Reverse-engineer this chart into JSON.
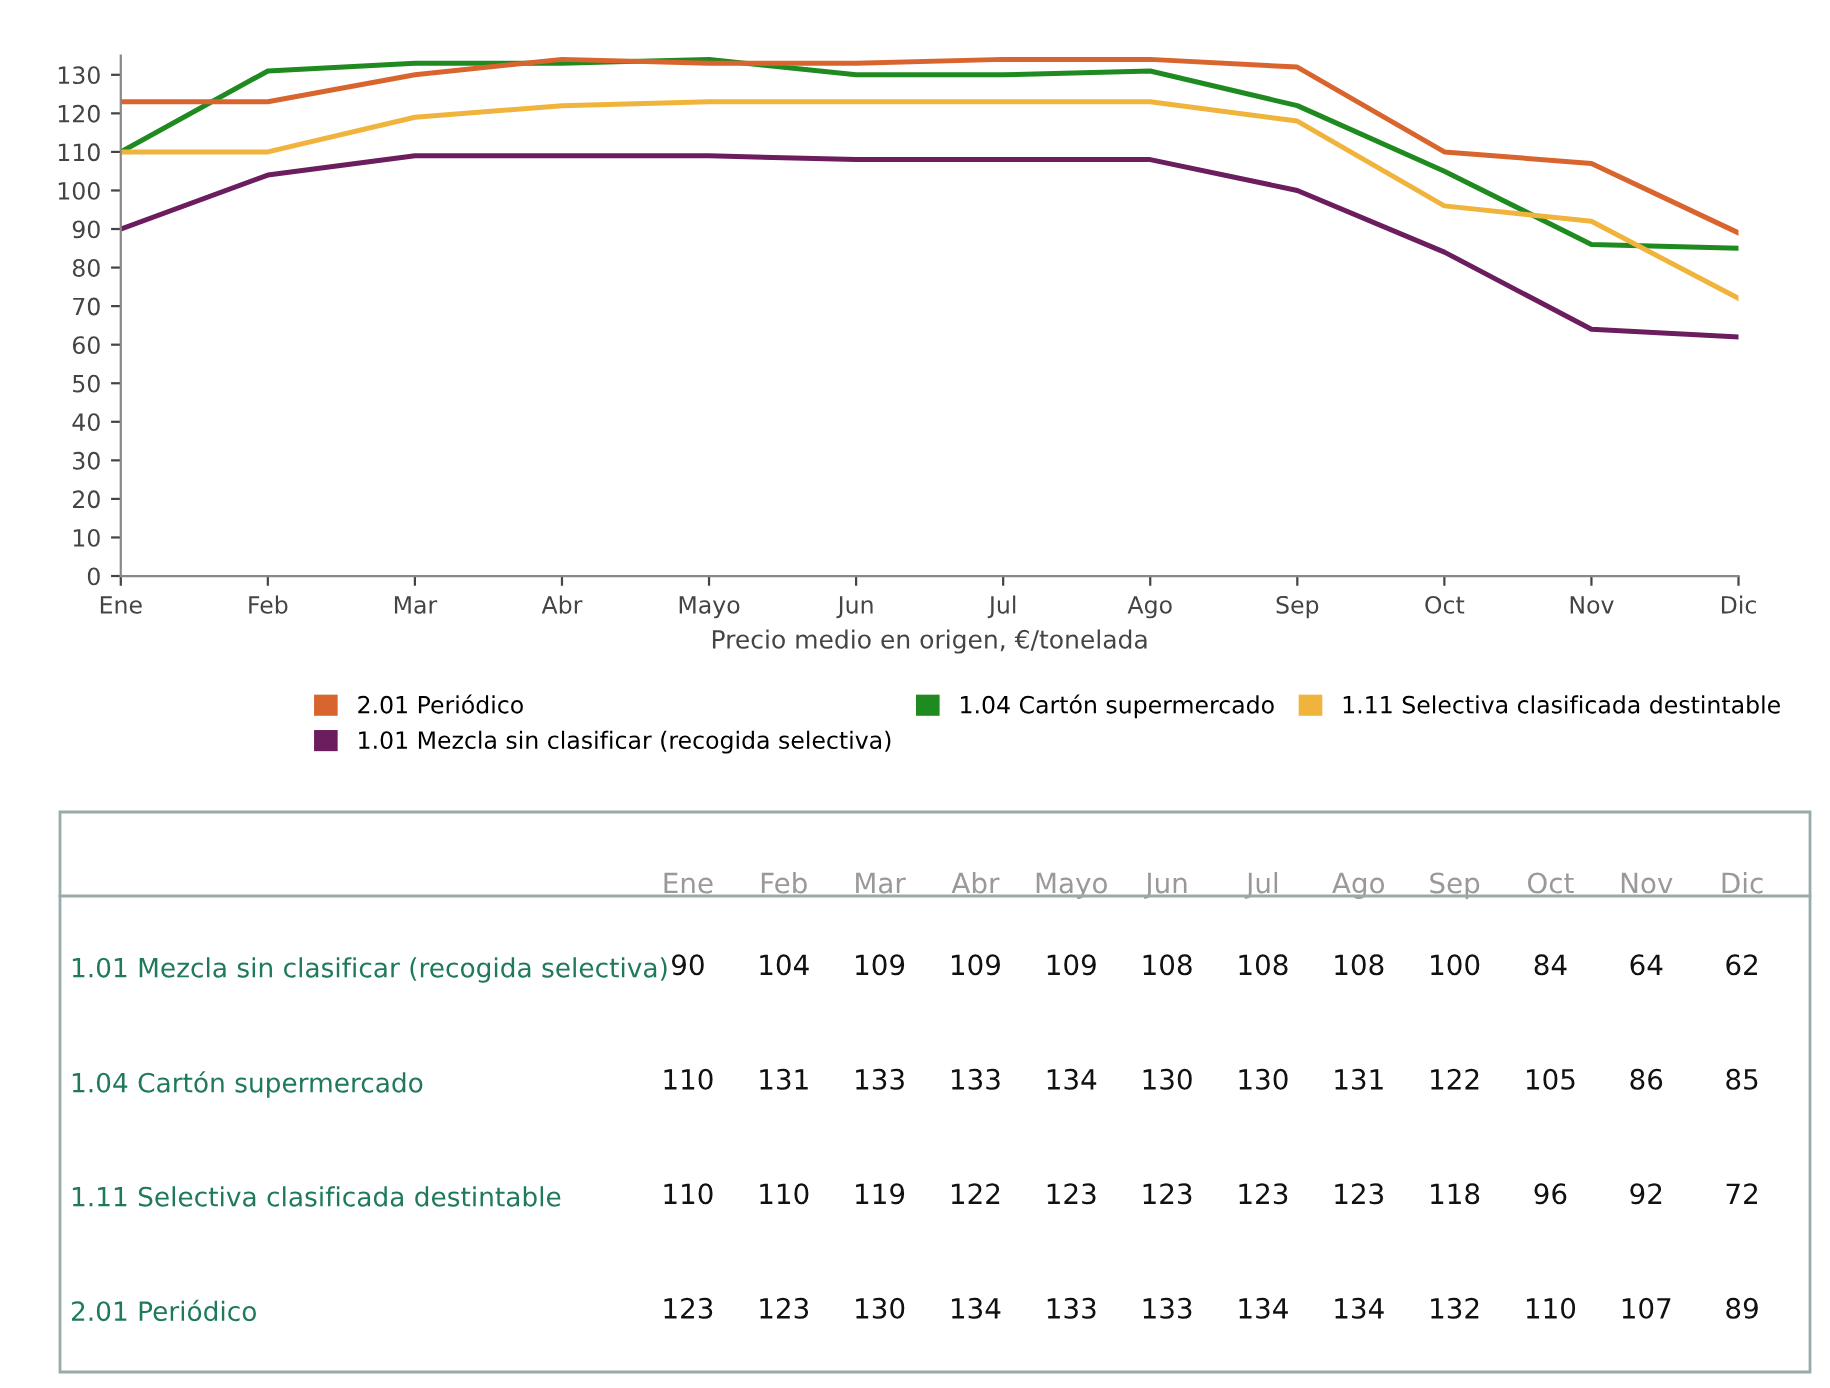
{
  "chart_data": [
    {
      "type": "line",
      "xlabel": "Precio medio en origen, €/tonelada",
      "categories": [
        "Ene",
        "Feb",
        "Mar",
        "Abr",
        "Mayo",
        "Jun",
        "Jul",
        "Ago",
        "Sep",
        "Oct",
        "Nov",
        "Dic"
      ],
      "series": [
        {
          "name": "1.01 Mezcla sin clasificar (recogida selectiva)",
          "color": "#6b1d5e",
          "values": [
            90,
            104,
            109,
            109,
            109,
            108,
            108,
            108,
            100,
            84,
            64,
            62
          ]
        },
        {
          "name": "1.04 Cartón supermercado",
          "color": "#1f8a1f",
          "values": [
            110,
            131,
            133,
            133,
            134,
            130,
            130,
            131,
            122,
            105,
            86,
            85
          ]
        },
        {
          "name": "1.11 Selectiva clasificada destintable",
          "color": "#f0b43c",
          "values": [
            110,
            110,
            119,
            122,
            123,
            123,
            123,
            123,
            118,
            96,
            92,
            72
          ]
        },
        {
          "name": "2.01 Periódico",
          "color": "#d9652e",
          "values": [
            123,
            123,
            130,
            134,
            133,
            133,
            134,
            134,
            132,
            110,
            107,
            89
          ]
        }
      ],
      "ylim": [
        0,
        135
      ],
      "yticks": [
        0,
        10,
        20,
        30,
        40,
        50,
        60,
        70,
        80,
        90,
        100,
        110,
        120,
        130
      ],
      "grid": false,
      "legend": "bottom",
      "marker": "none",
      "line_style": "solid"
    },
    {
      "type": "heatmap",
      "categories": [
        "Ene",
        "Feb",
        "Mar",
        "Abr",
        "Mayo",
        "Jun",
        "Jul",
        "Ago",
        "Sep",
        "Oct",
        "Nov",
        "Dic"
      ],
      "y_categories": [
        "1.01 Mezcla sin clasificar (recogida selectiva)",
        "1.04 Cartón supermercado",
        "1.11 Selectiva clasificada destintable",
        "2.01 Periódico"
      ],
      "cells": [
        [
          90,
          104,
          109,
          109,
          109,
          108,
          108,
          108,
          100,
          84,
          64,
          62
        ],
        [
          110,
          131,
          133,
          133,
          134,
          130,
          130,
          131,
          122,
          105,
          86,
          85
        ],
        [
          110,
          110,
          119,
          122,
          123,
          123,
          123,
          123,
          118,
          96,
          92,
          72
        ],
        [
          123,
          123,
          130,
          134,
          133,
          133,
          134,
          134,
          132,
          110,
          107,
          89
        ]
      ],
      "data_labels": true
    }
  ]
}
